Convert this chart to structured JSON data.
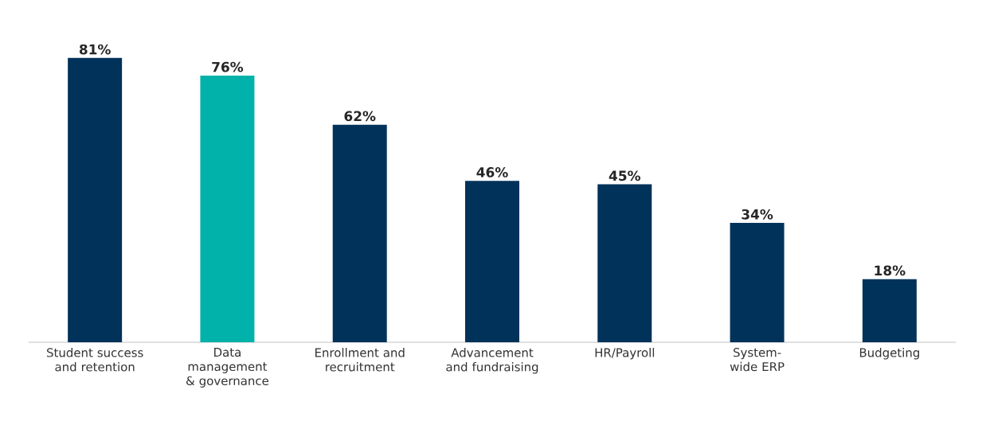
{
  "chart_data": {
    "type": "bar",
    "categories": [
      "Student success and retention",
      "Data management & governance",
      "Enrollment and recruitment",
      "Advancement and fundraising",
      "HR/Payroll",
      "System-wide ERP",
      "Budgeting"
    ],
    "values": [
      81,
      76,
      62,
      46,
      45,
      34,
      18
    ],
    "value_labels": [
      "81%",
      "76%",
      "62%",
      "46%",
      "45%",
      "34%",
      "18%"
    ],
    "colors": [
      "#00325a",
      "#00b2a9",
      "#00325a",
      "#00325a",
      "#00325a",
      "#00325a",
      "#00325a"
    ]
  }
}
